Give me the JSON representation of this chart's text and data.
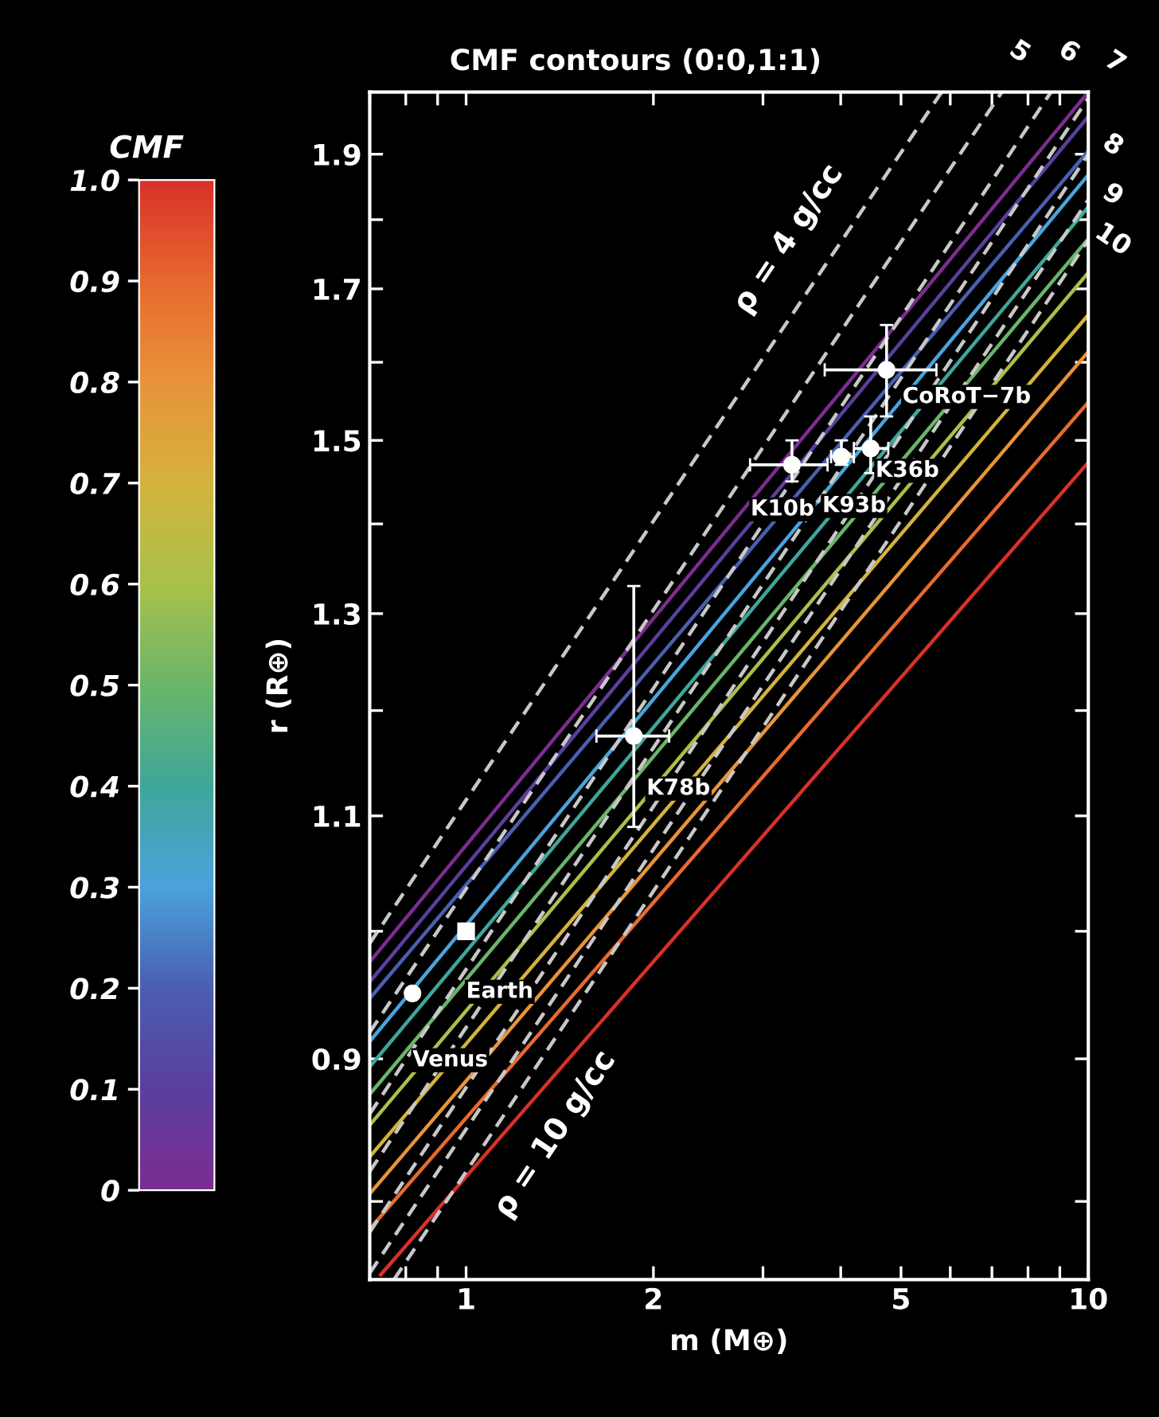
{
  "chart_data": {
    "type": "line",
    "title": "CMF contours (0:0,1:1)",
    "xlabel": "m (M⊕)",
    "ylabel": "r (R⊕)",
    "clabel": "CMF",
    "clim": [
      0,
      1
    ],
    "cticks": [
      0,
      0.1,
      0.2,
      0.3,
      0.4,
      0.5,
      0.6,
      0.7,
      0.8,
      0.9,
      {
        "value": 1,
        "label": "1.0"
      }
    ],
    "log": "xy",
    "xlim": [
      0.7,
      10
    ],
    "ylim": [
      0.75,
      2.0
    ],
    "xticks": [
      {
        "value": 0.7,
        "label": null
      },
      {
        "value": 0.8,
        "label": null
      },
      {
        "value": 0.9,
        "label": null
      },
      1,
      2,
      {
        "value": 3,
        "label": null
      },
      {
        "value": 4,
        "label": null
      },
      5,
      {
        "value": 6,
        "label": null
      },
      {
        "value": 7,
        "label": null
      },
      {
        "value": 8,
        "label": null
      },
      {
        "value": 9,
        "label": null
      },
      10
    ],
    "yticks": [
      {
        "value": 0.8,
        "label": null
      },
      0.9,
      {
        "value": 1.0,
        "label": null
      },
      1.1,
      {
        "value": 1.2,
        "label": null
      },
      1.3,
      {
        "value": 1.4,
        "label": null
      },
      1.5,
      {
        "value": 1.6,
        "label": null
      },
      1.7,
      {
        "value": 1.8,
        "label": null
      },
      1.9
    ],
    "series": [
      {
        "type": "line",
        "line_style": "solid",
        "color": "#7b2d90",
        "x": [
          0.7,
          10
        ],
        "values": [
          0.975,
          2.0
        ]
      },
      {
        "type": "line",
        "line_style": "solid",
        "color": "#5a3f9e",
        "x": [
          0.7,
          10
        ],
        "values": [
          0.959,
          1.96
        ]
      },
      {
        "type": "line",
        "line_style": "solid",
        "color": "#4a5fb0",
        "x": [
          0.7,
          10
        ],
        "values": [
          0.946,
          1.905
        ]
      },
      {
        "type": "line",
        "line_style": "solid",
        "color": "#4aa3dc",
        "x": [
          0.7,
          10
        ],
        "values": [
          0.913,
          1.868
        ]
      },
      {
        "type": "line",
        "line_style": "solid",
        "color": "#3fa69a",
        "x": [
          0.7,
          10
        ],
        "values": [
          0.894,
          1.819
        ]
      },
      {
        "type": "line",
        "line_style": "solid",
        "color": "#6bb56a",
        "x": [
          0.7,
          10
        ],
        "values": [
          0.874,
          1.772
        ]
      },
      {
        "type": "line",
        "line_style": "solid",
        "color": "#a8c14a",
        "x": [
          0.7,
          10
        ],
        "values": [
          0.852,
          1.723
        ]
      },
      {
        "type": "line",
        "line_style": "solid",
        "color": "#d4b33c",
        "x": [
          0.7,
          10
        ],
        "values": [
          0.83,
          1.664
        ]
      },
      {
        "type": "line",
        "line_style": "solid",
        "color": "#e8943a",
        "x": [
          0.7,
          10
        ],
        "values": [
          0.805,
          1.614
        ]
      },
      {
        "type": "line",
        "line_style": "solid",
        "color": "#e86a2e",
        "x": [
          0.7,
          10
        ],
        "values": [
          0.782,
          1.548
        ]
      },
      {
        "type": "line",
        "line_style": "solid",
        "color": "#d8312a",
        "x": [
          0.729,
          10
        ],
        "values": [
          0.753,
          1.473
        ]
      },
      {
        "type": "line",
        "line_style": "dashed",
        "color": "#c8c8c8",
        "x": [
          0.7,
          5.81
        ],
        "values": [
          0.99,
          2.0
        ]
      },
      {
        "type": "line",
        "line_style": "dashed",
        "color": "#c8c8c8",
        "x": [
          0.7,
          7.26
        ],
        "values": [
          0.92,
          2.0
        ]
      },
      {
        "type": "line",
        "line_style": "dashed",
        "color": "#c8c8c8",
        "x": [
          0.7,
          8.71
        ],
        "values": [
          0.86,
          2.0
        ]
      },
      {
        "type": "line",
        "line_style": "dashed",
        "color": "#c8c8c8",
        "x": [
          0.7,
          10
        ],
        "values": [
          0.82,
          1.99
        ]
      },
      {
        "type": "line",
        "line_style": "dashed",
        "color": "#c8c8c8",
        "x": [
          0.7,
          10
        ],
        "values": [
          0.78,
          1.9
        ]
      },
      {
        "type": "line",
        "line_style": "dashed",
        "color": "#c8c8c8",
        "x": [
          0.7,
          10
        ],
        "values": [
          0.754,
          1.83
        ]
      },
      {
        "type": "line",
        "line_style": "dashed",
        "color": "#c8c8c8",
        "x": [
          0.766,
          10
        ],
        "values": [
          0.75,
          1.77
        ]
      },
      {
        "type": "scatter",
        "name": "Earth",
        "marker": "square",
        "color": "#ffffff",
        "x": [
          1.0
        ],
        "values": [
          1.0
        ]
      },
      {
        "type": "scatter",
        "name": "Venus",
        "marker": "circle",
        "color": "#ffffff",
        "x": [
          0.82
        ],
        "values": [
          0.95
        ]
      },
      {
        "type": "scatter",
        "name": "K78b",
        "marker": "circle",
        "color": "#ffffff",
        "x": [
          1.86
        ],
        "values": [
          1.175
        ],
        "errors": [
          [
            1.09,
            1.33
          ]
        ],
        "xerrors": [
          [
            1.62,
            2.12
          ]
        ]
      },
      {
        "type": "scatter",
        "name": "K10b",
        "marker": "circle",
        "color": "#ffffff",
        "x": [
          3.34
        ],
        "values": [
          1.47
        ],
        "errors": [
          [
            1.45,
            1.5
          ]
        ],
        "xerrors": [
          [
            2.86,
            3.81
          ]
        ]
      },
      {
        "type": "scatter",
        "name": "K93b",
        "marker": "circle",
        "color": "#ffffff",
        "x": [
          4.01
        ],
        "values": [
          1.48
        ],
        "errors": [
          [
            1.47,
            1.5
          ]
        ],
        "xerrors": [
          [
            3.86,
            4.2
          ]
        ]
      },
      {
        "type": "scatter",
        "name": "K36b",
        "marker": "circle",
        "color": "#ffffff",
        "x": [
          4.47
        ],
        "values": [
          1.49
        ],
        "errors": [
          [
            1.46,
            1.53
          ]
        ],
        "xerrors": [
          [
            4.2,
            4.77
          ]
        ]
      },
      {
        "type": "scatter",
        "name": "CoRoT−7b",
        "marker": "circle",
        "color": "#ffffff",
        "x": [
          4.74
        ],
        "values": [
          1.59
        ],
        "errors": [
          [
            1.53,
            1.65
          ]
        ],
        "xerrors": [
          [
            3.77,
            5.7
          ]
        ]
      }
    ],
    "annotations": [
      {
        "text": "ρ = 4 g/cc",
        "x": 3.7,
        "y": 1.72
      },
      {
        "text": "ρ = 10 g/cc",
        "x": 1.24,
        "y": 0.88
      },
      {
        "text": "5",
        "x": 7.26,
        "y": 2.0
      },
      {
        "text": "6",
        "x": 8.71,
        "y": 2.0
      },
      {
        "text": "7",
        "x": 10,
        "y": 1.99
      },
      {
        "text": "8",
        "x": 10,
        "y": 1.9
      },
      {
        "text": "9",
        "x": 10,
        "y": 1.83
      },
      {
        "text": "10",
        "x": 10,
        "y": 1.77
      }
    ]
  }
}
